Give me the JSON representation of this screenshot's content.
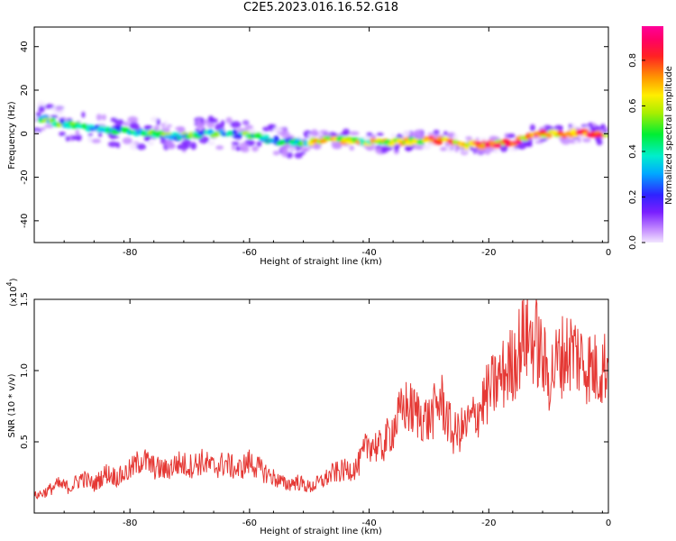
{
  "title": "C2E5.2023.016.16.52.G18",
  "colors": {
    "line": "#e53935",
    "frame": "#000000"
  },
  "chart_data": [
    {
      "type": "heatmap",
      "xlabel": "Height of straight line (km)",
      "ylabel": "Frequency (Hz)",
      "xlim": [
        -96,
        0
      ],
      "ylim": [
        -50,
        49
      ],
      "x_ticks": [
        -80,
        -60,
        -40,
        -20,
        0
      ],
      "y_ticks": [
        40,
        20,
        0,
        -20,
        -40
      ],
      "ridge": {
        "x": [
          -95,
          -92,
          -88,
          -84,
          -80,
          -76,
          -72,
          -68,
          -64,
          -60,
          -56,
          -52,
          -48,
          -44,
          -40,
          -36,
          -32,
          -28,
          -24,
          -20,
          -16,
          -12,
          -8,
          -4,
          0
        ],
        "frequency": [
          7,
          5,
          3,
          2,
          1,
          0,
          -1,
          0,
          0,
          -1,
          -3,
          -4,
          -3,
          -3,
          -4,
          -4,
          -3,
          -3,
          -5,
          -5,
          -4,
          0,
          0,
          0,
          0
        ]
      },
      "colorbar": {
        "label": "Normalized spectral amplitude",
        "range": [
          0,
          0.95
        ],
        "ticks": [
          0.0,
          0.2,
          0.4,
          0.6,
          0.8
        ]
      }
    },
    {
      "type": "line",
      "xlabel": "Height of straight line (km)",
      "ylabel": "SNR (10 * v/v)",
      "yscale_label": "(x10",
      "yscale_exp": "4",
      "yscale_close": ")",
      "xlim": [
        -96,
        0
      ],
      "ylim": [
        0,
        1.5
      ],
      "x_ticks": [
        -80,
        -60,
        -40,
        -20,
        0
      ],
      "y_ticks": [
        0.5,
        1.0,
        1.5
      ],
      "y_tick_labels": [
        "0.5",
        "1.0",
        "1.5"
      ],
      "series": [
        {
          "x": [
            -96,
            -94,
            -92,
            -90,
            -88,
            -86,
            -84,
            -82,
            -80,
            -78,
            -76,
            -74,
            -72,
            -70,
            -68,
            -66,
            -64,
            -62,
            -60,
            -58,
            -56,
            -54,
            -52,
            -50,
            -48,
            -46,
            -44,
            -42,
            -40,
            -38,
            -36,
            -34,
            -32,
            -30,
            -28,
            -26,
            -24,
            -22,
            -20,
            -18,
            -16,
            -14,
            -12,
            -10,
            -8,
            -6,
            -4,
            -2,
            0
          ],
          "values": [
            0.12,
            0.15,
            0.2,
            0.18,
            0.25,
            0.2,
            0.28,
            0.25,
            0.3,
            0.38,
            0.32,
            0.3,
            0.35,
            0.33,
            0.36,
            0.32,
            0.35,
            0.3,
            0.36,
            0.3,
            0.25,
            0.2,
            0.22,
            0.18,
            0.22,
            0.28,
            0.3,
            0.32,
            0.5,
            0.45,
            0.6,
            0.75,
            0.7,
            0.65,
            0.8,
            0.55,
            0.6,
            0.7,
            0.85,
            0.95,
            1.05,
            1.25,
            1.2,
            0.95,
            1.1,
            1.15,
            1.05,
            1.0,
            1.05
          ]
        }
      ]
    }
  ]
}
